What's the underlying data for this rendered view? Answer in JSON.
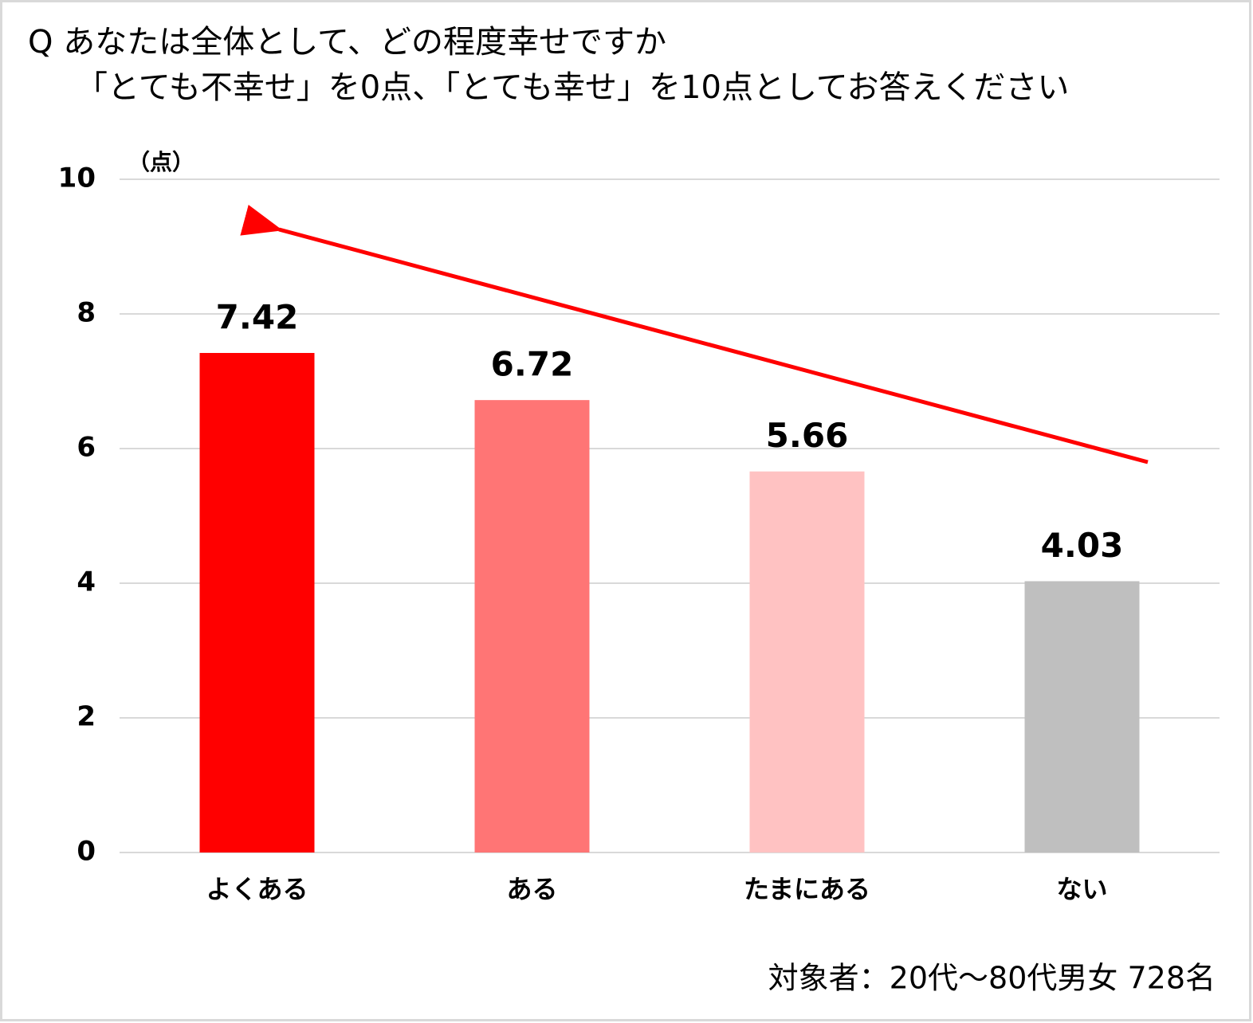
{
  "chart_data": {
    "type": "bar",
    "title": [
      "Q あなたは全体として、どの程度幸せですか",
      "「とても不幸せ」を0点、「とても幸せ」を10点としてお答えください"
    ],
    "y_unit": "（点）",
    "note": "対象者：20代～80代男女 728名",
    "categories": [
      "よくある",
      "ある",
      "たまにある",
      "ない"
    ],
    "values": [
      7.42,
      6.72,
      5.66,
      4.03
    ],
    "colors": [
      "#ff0000",
      "#ff7575",
      "#ffc2c2",
      "#bfbfbf"
    ],
    "ylim": [
      0,
      10
    ],
    "yticks": [
      0,
      2,
      4,
      6,
      8,
      10
    ],
    "grid": true
  }
}
